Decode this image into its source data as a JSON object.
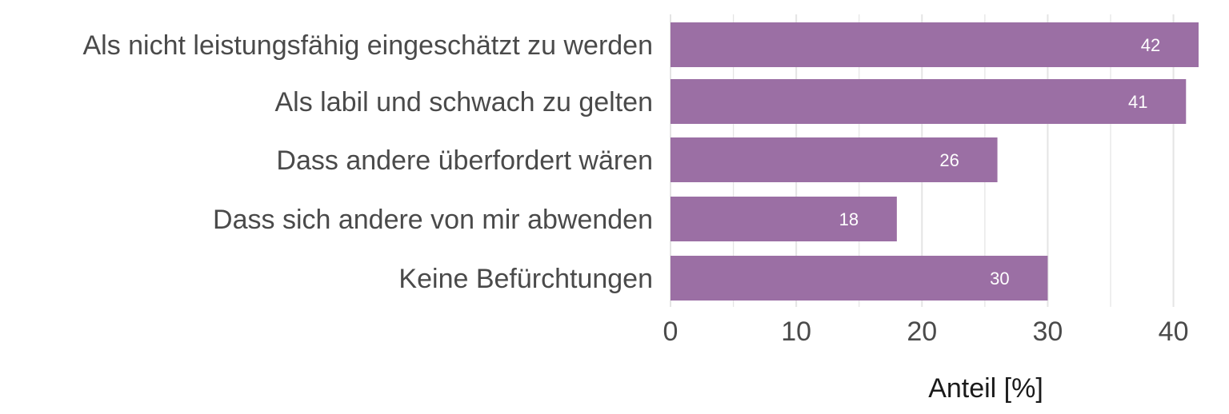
{
  "chart_data": {
    "type": "bar",
    "orientation": "horizontal",
    "title": "",
    "xlabel": "Anteil [%]",
    "ylabel": "",
    "categories": [
      "Als nicht leistungsfähig eingeschätzt zu werden",
      "Als labil und schwach zu gelten",
      "Dass andere überfordert wären",
      "Dass sich andere von mir abwenden",
      "Keine Befürchtungen"
    ],
    "values": [
      42,
      41,
      26,
      18,
      30
    ],
    "data_labels": [
      "42",
      "41",
      "26",
      "18",
      "30"
    ],
    "xlim": [
      0,
      42
    ],
    "xticks": [
      0,
      10,
      20,
      30,
      40
    ],
    "xtick_labels": [
      "0",
      "10",
      "20",
      "30",
      "40"
    ],
    "grid": true,
    "legend": "none",
    "colors": {
      "bar": "#9b6fa4",
      "grid": "#e4e4e4",
      "text": "#4a4a4a",
      "value_text": "#ffffff"
    }
  }
}
